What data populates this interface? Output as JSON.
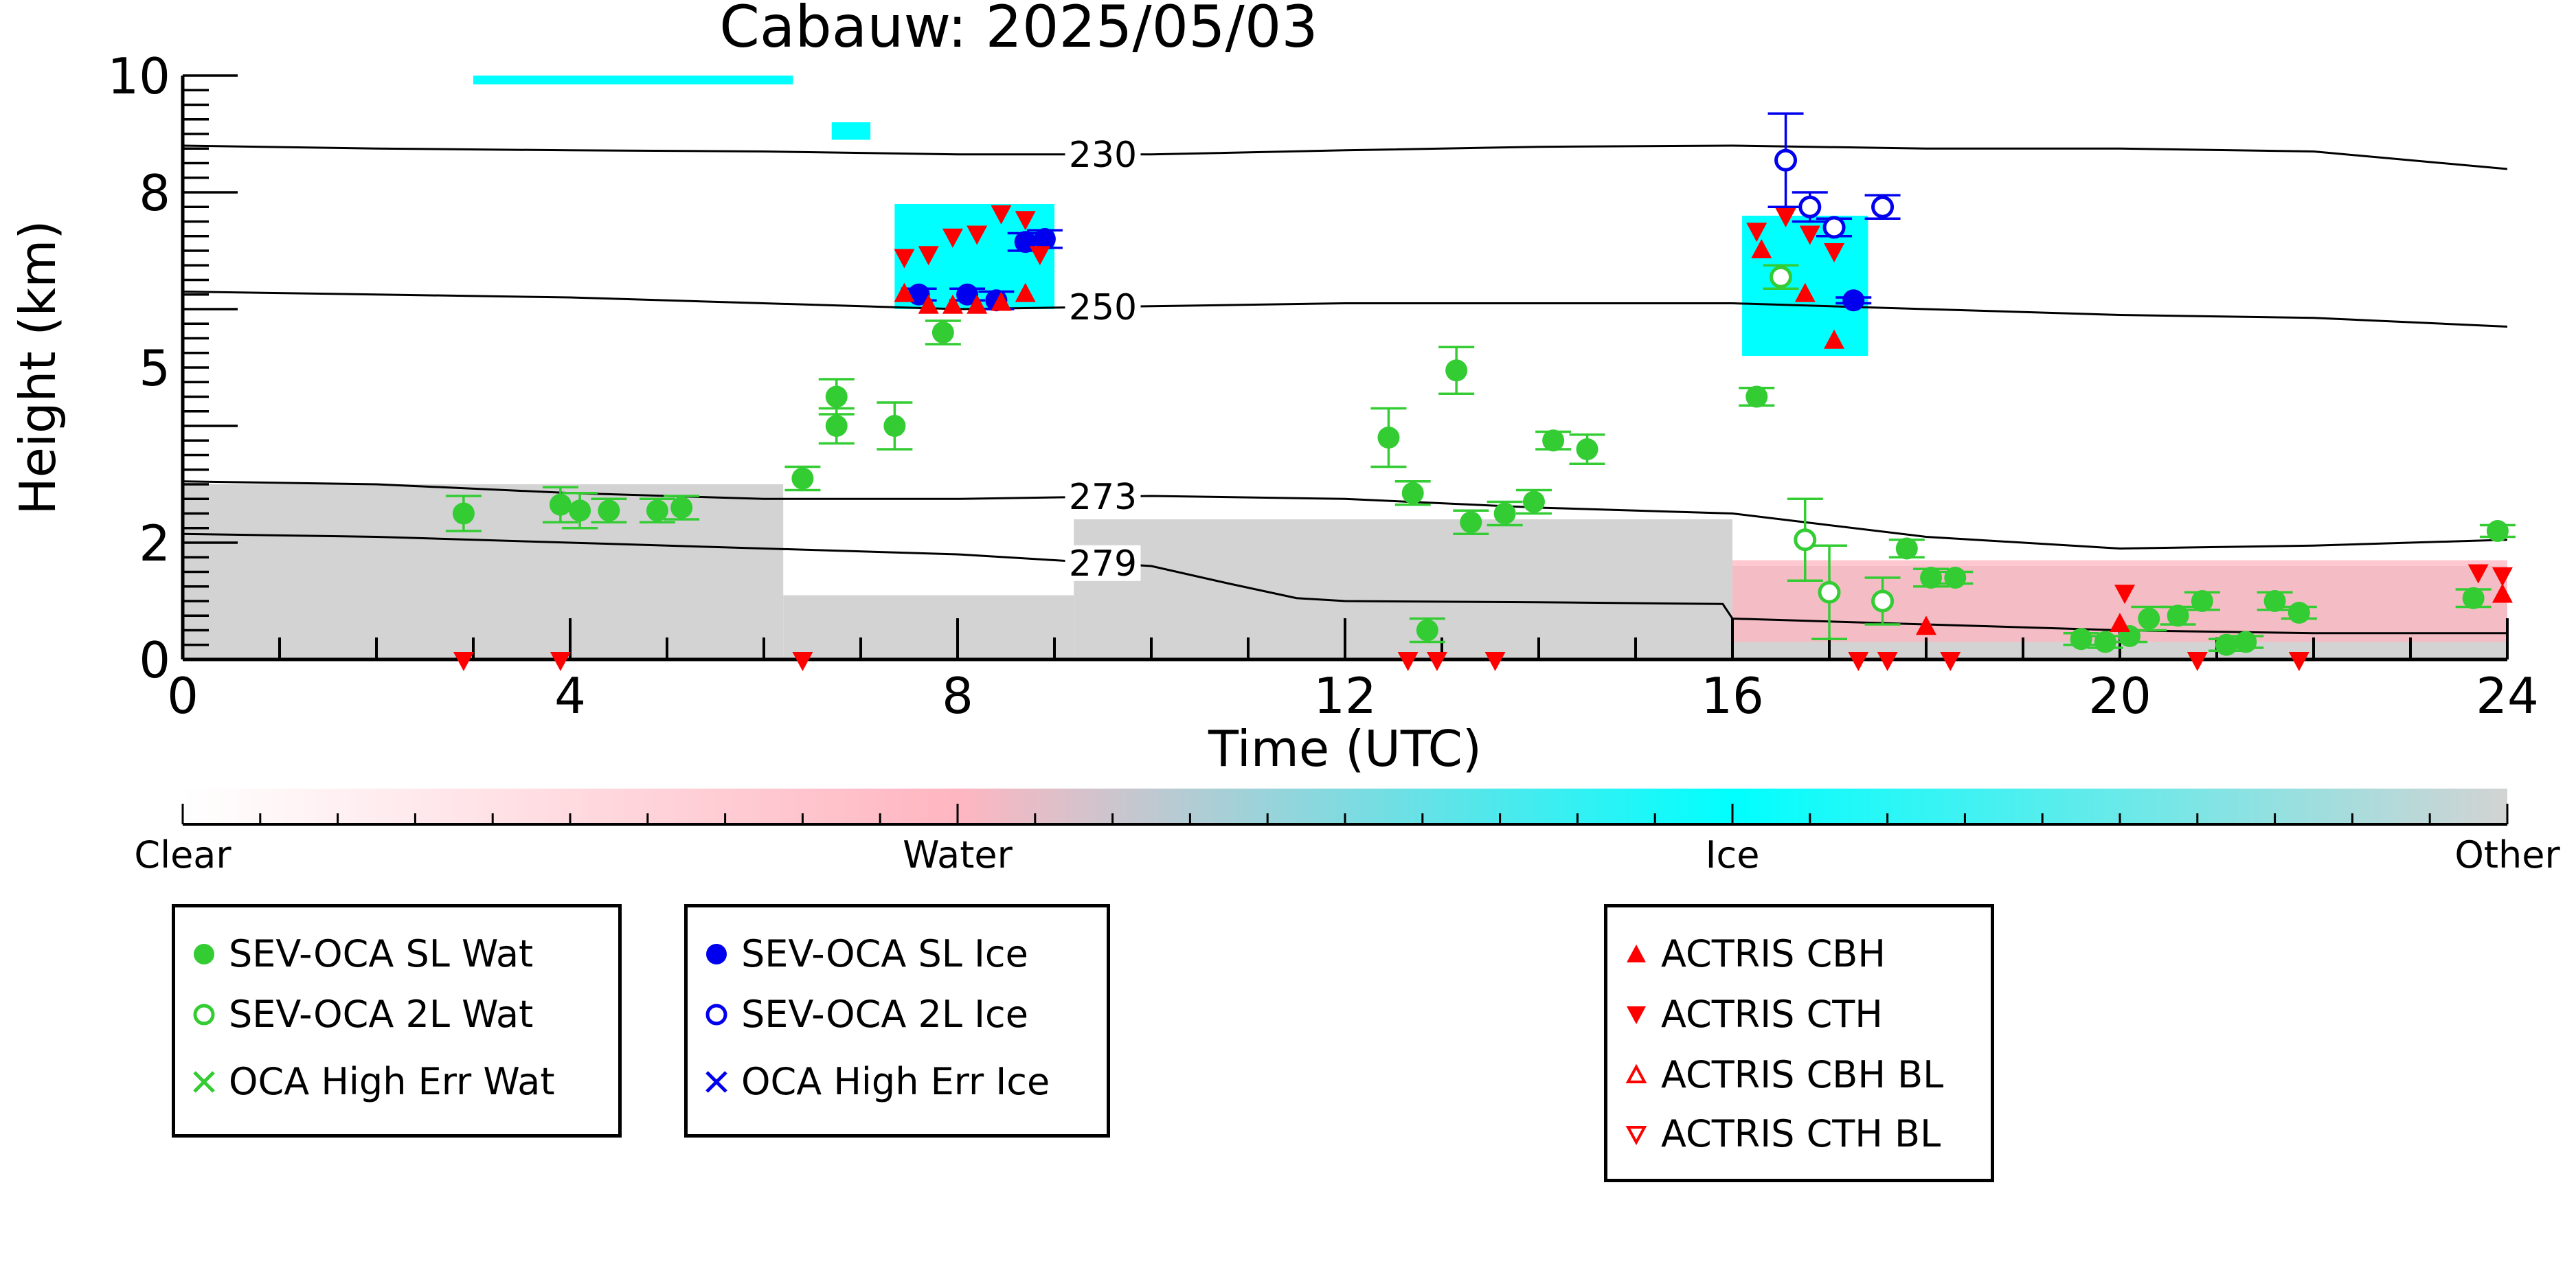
{
  "chart_data": {
    "type": "scatter",
    "title": "Cabauw: 2025/05/03",
    "xlabel": "Time (UTC)",
    "ylabel": "Height (km)",
    "xlim": [
      0,
      24
    ],
    "ylim": [
      0,
      10
    ],
    "xticks": [
      "0",
      "4",
      "8",
      "12",
      "16",
      "20",
      "24"
    ],
    "yticks": [
      "0",
      "2",
      "5",
      "8",
      "10"
    ],
    "colorbar": {
      "labels": [
        "Clear",
        "Water",
        "Ice",
        "Other"
      ],
      "colors": [
        "#ffffff",
        "#ffb6c1",
        "#00ffff",
        "#d3d3d3"
      ]
    },
    "colors": {
      "water_marker": "#33cc33",
      "ice_marker": "#0000ee",
      "actris": "#ff0000",
      "other_cloud": "#d3d3d3",
      "water_cloud": "#ffb6c1",
      "ice_cloud": "#00ffff"
    },
    "isotherms": [
      {
        "label": "230",
        "x": [
          0,
          2,
          4,
          6,
          8,
          10,
          12,
          14,
          16,
          18,
          20,
          22,
          24
        ],
        "y": [
          8.8,
          8.75,
          8.72,
          8.7,
          8.65,
          8.65,
          8.72,
          8.78,
          8.8,
          8.75,
          8.75,
          8.7,
          8.4
        ]
      },
      {
        "label": "250",
        "x": [
          0,
          2,
          4,
          6,
          8,
          10,
          12,
          14,
          16,
          18,
          20,
          22,
          24
        ],
        "y": [
          6.3,
          6.25,
          6.2,
          6.1,
          6.0,
          6.05,
          6.1,
          6.1,
          6.1,
          6.0,
          5.9,
          5.85,
          5.7
        ]
      },
      {
        "label": "273",
        "x": [
          0,
          2,
          4,
          6,
          8,
          10,
          12,
          14,
          16,
          18,
          20,
          22,
          24
        ],
        "y": [
          3.05,
          3.0,
          2.85,
          2.75,
          2.75,
          2.8,
          2.75,
          2.6,
          2.5,
          2.1,
          1.9,
          1.95,
          2.05
        ]
      },
      {
        "label": "279",
        "x": [
          0,
          2,
          4,
          6,
          8,
          9,
          10,
          10.8,
          11.5,
          12,
          14,
          15.9,
          16,
          18,
          20,
          22,
          24
        ],
        "y": [
          2.15,
          2.1,
          2.0,
          1.9,
          1.8,
          1.7,
          1.6,
          1.3,
          1.05,
          1.0,
          0.98,
          0.95,
          0.7,
          0.6,
          0.5,
          0.45,
          0.45
        ]
      }
    ],
    "series": [
      {
        "name": "SEV-OCA SL Wat",
        "marker": "filled-circle",
        "color": "#33cc33",
        "x": [
          2.9,
          3.9,
          4.1,
          4.4,
          4.9,
          5.15,
          6.4,
          6.75,
          6.75,
          7.35,
          7.85,
          12.45,
          12.7,
          12.85,
          13.15,
          13.3,
          13.65,
          13.95,
          14.15,
          14.5,
          16.25,
          17.8,
          18.05,
          18.3,
          19.6,
          19.85,
          20.1,
          20.3,
          20.6,
          20.85,
          21.1,
          21.3,
          21.6,
          21.85,
          23.65,
          23.9
        ],
        "y": [
          2.5,
          2.65,
          2.55,
          2.55,
          2.55,
          2.6,
          3.1,
          4.0,
          4.5,
          4.0,
          5.6,
          3.8,
          2.85,
          0.5,
          4.95,
          2.35,
          2.5,
          2.7,
          3.75,
          3.6,
          4.5,
          1.9,
          1.4,
          1.4,
          0.35,
          0.3,
          0.4,
          0.7,
          0.75,
          1.0,
          0.25,
          0.3,
          1.0,
          0.8,
          1.05,
          2.2
        ],
        "err": [
          0.3,
          0.3,
          0.3,
          0.2,
          0.2,
          0.2,
          0.2,
          0.3,
          0.3,
          0.4,
          0.2,
          0.5,
          0.2,
          0.2,
          0.4,
          0.2,
          0.2,
          0.2,
          0.15,
          0.25,
          0.15,
          0.15,
          0.15,
          0.1,
          0.1,
          0.1,
          0.1,
          0.2,
          0.15,
          0.15,
          0.1,
          0.1,
          0.15,
          0.1,
          0.15,
          0.1
        ]
      },
      {
        "name": "SEV-OCA 2L Wat",
        "marker": "open-circle",
        "color": "#33cc33",
        "x": [
          16.5,
          16.75,
          17.0,
          17.55
        ],
        "y": [
          6.55,
          2.05,
          1.15,
          1.0
        ],
        "err": [
          0.2,
          0.7,
          0.8,
          0.4
        ]
      },
      {
        "name": "OCA High Err Wat",
        "marker": "x",
        "color": "#33cc33",
        "x": [],
        "y": []
      },
      {
        "name": "SEV-OCA SL Ice",
        "marker": "filled-circle",
        "color": "#0000ee",
        "x": [
          7.6,
          8.1,
          8.4,
          8.7,
          8.9,
          17.25
        ],
        "y": [
          6.25,
          6.25,
          6.15,
          7.15,
          7.2,
          6.15
        ],
        "err": [
          0.1,
          0.1,
          0.15,
          0.15,
          0.15,
          0.05
        ]
      },
      {
        "name": "SEV-OCA 2L Ice",
        "marker": "open-circle",
        "color": "#0000ee",
        "x": [
          16.55,
          16.8,
          17.05,
          17.55
        ],
        "y": [
          8.55,
          7.75,
          7.4,
          7.75
        ],
        "err": [
          0.8,
          0.25,
          0.15,
          0.2
        ]
      },
      {
        "name": "OCA High Err Ice",
        "marker": "x",
        "color": "#0000ee",
        "x": [],
        "y": []
      },
      {
        "name": "ACTRIS CBH",
        "marker": "triangle-up",
        "color": "#ff0000",
        "x": [
          7.45,
          7.7,
          7.95,
          8.2,
          8.45,
          8.7,
          16.3,
          16.75,
          17.05,
          18.0,
          20.0,
          23.95
        ],
        "y": [
          6.25,
          6.05,
          6.05,
          6.05,
          6.1,
          6.25,
          7.0,
          6.25,
          5.45,
          0.55,
          0.6,
          1.1
        ],
        "err": []
      },
      {
        "name": "ACTRIS CTH",
        "marker": "triangle-down",
        "color": "#ff0000",
        "x": [
          2.9,
          3.9,
          6.4,
          7.45,
          7.7,
          7.95,
          8.2,
          8.45,
          8.7,
          8.85,
          12.65,
          12.95,
          13.55,
          16.25,
          16.55,
          16.8,
          17.05,
          17.3,
          17.6,
          18.25,
          20.05,
          20.8,
          21.85,
          23.7,
          23.95
        ],
        "y": [
          0.0,
          0.0,
          0.0,
          6.9,
          6.95,
          7.25,
          7.3,
          7.65,
          7.55,
          6.95,
          0.0,
          0.0,
          0.0,
          7.35,
          7.6,
          7.3,
          7.0,
          0.0,
          0.0,
          0.0,
          1.15,
          0.0,
          0.0,
          1.5,
          1.45
        ],
        "err": []
      },
      {
        "name": "ACTRIS CBH BL",
        "marker": "open-triangle-up",
        "color": "#ff0000",
        "x": [],
        "y": []
      },
      {
        "name": "ACTRIS CTH BL",
        "marker": "open-triangle-down",
        "color": "#ff0000",
        "x": [],
        "y": []
      }
    ],
    "cloud_regions": [
      {
        "class": "Other",
        "x0": 0,
        "x1": 6.2,
        "y0": 0,
        "y1": 3.0
      },
      {
        "class": "Other",
        "x0": 6.2,
        "x1": 9.2,
        "y0": 0,
        "y1": 1.1
      },
      {
        "class": "Other",
        "x0": 9.2,
        "x1": 16.0,
        "y0": 0,
        "y1": 2.4
      },
      {
        "class": "Other",
        "x0": 16.0,
        "x1": 24.0,
        "y0": 0,
        "y1": 1.6
      },
      {
        "class": "Water",
        "x0": 16.0,
        "x1": 24.0,
        "y0": 0.3,
        "y1": 1.7
      },
      {
        "class": "Ice",
        "x0": 7.35,
        "x1": 9.0,
        "y0": 6.0,
        "y1": 7.8
      },
      {
        "class": "Ice",
        "x0": 16.1,
        "x1": 17.4,
        "y0": 5.2,
        "y1": 7.6
      },
      {
        "class": "Ice",
        "x0": 3.0,
        "x1": 6.3,
        "y0": 9.85,
        "y1": 10.0
      },
      {
        "class": "Ice",
        "x0": 6.7,
        "x1": 7.1,
        "y0": 8.9,
        "y1": 9.2
      }
    ]
  },
  "legends": [
    {
      "entries": [
        "SEV-OCA SL Wat",
        "SEV-OCA 2L Wat",
        "OCA High Err Wat"
      ]
    },
    {
      "entries": [
        "SEV-OCA SL Ice",
        "SEV-OCA 2L Ice",
        "OCA High Err Ice"
      ]
    },
    {
      "entries": [
        "ACTRIS CBH",
        "ACTRIS CTH",
        "ACTRIS CBH BL",
        "ACTRIS CTH BL"
      ]
    }
  ]
}
